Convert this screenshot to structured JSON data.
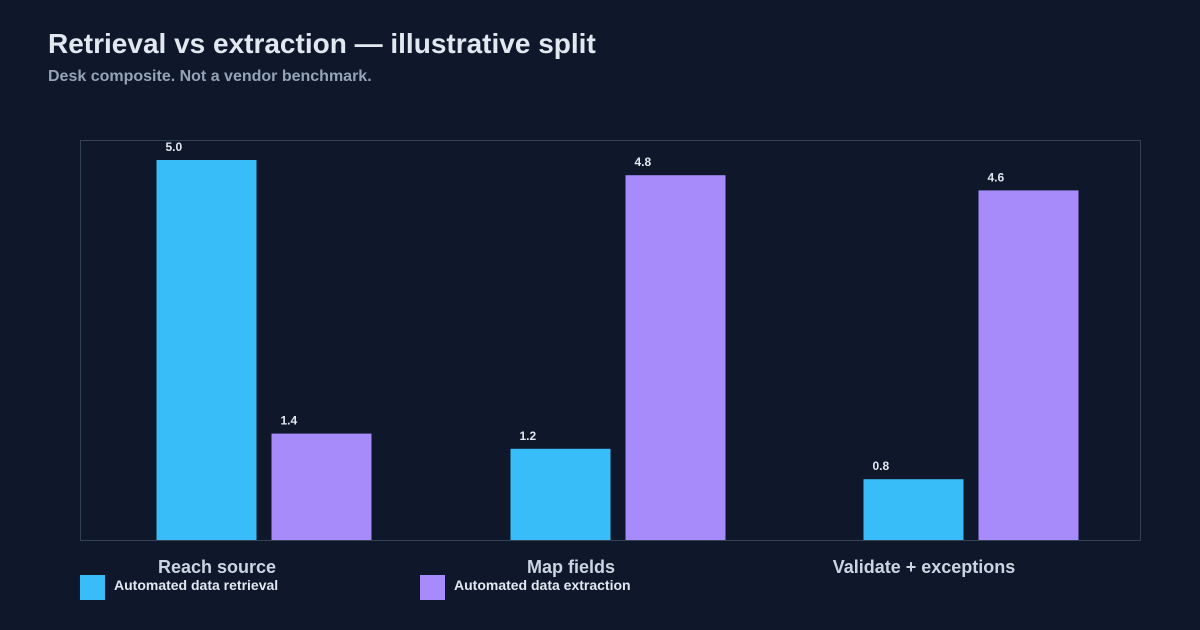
{
  "chart_data": {
    "type": "bar",
    "title": "Retrieval vs extraction — illustrative split",
    "subtitle": "Desk composite. Not a vendor benchmark.",
    "xlabel": "",
    "ylabel": "",
    "ylim": [
      0,
      5
    ],
    "grid": false,
    "legend_position": "bottom-left",
    "categories": [
      "Reach source",
      "Map fields",
      "Validate + exceptions"
    ],
    "series": [
      {
        "name": "Automated data retrieval",
        "values": [
          5.0,
          1.2,
          0.8
        ],
        "color": "#38bdf8"
      },
      {
        "name": "Automated data extraction",
        "values": [
          1.4,
          4.8,
          4.6
        ],
        "color": "#a78bfa"
      }
    ]
  },
  "colors": {
    "background": "#0f172a",
    "plot_border": "#334155"
  }
}
